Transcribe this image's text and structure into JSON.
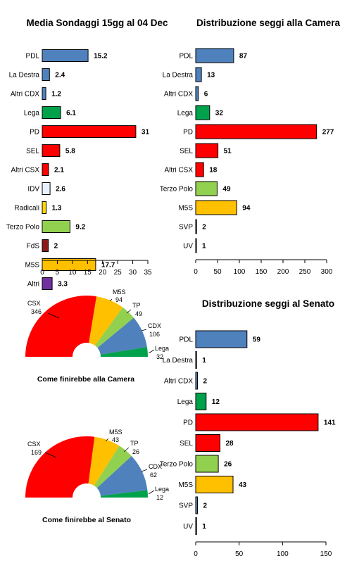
{
  "chart_data": [
    {
      "id": "poll",
      "type": "bar",
      "orientation": "horizontal",
      "title": "Media Sondaggi 15gg al 04 Dec",
      "categories": [
        "PDL",
        "La Destra",
        "Altri CDX",
        "Lega",
        "PD",
        "SEL",
        "Altri CSX",
        "IDV",
        "Radicali",
        "Terzo Polo",
        "FdS",
        "M5S",
        "Altri"
      ],
      "values": [
        15.2,
        2.4,
        1.2,
        6.1,
        31,
        5.8,
        2.1,
        2.6,
        1.3,
        9.2,
        2,
        17.7,
        3.3
      ],
      "value_labels": [
        "15.2",
        "2.4",
        "1.2",
        "6.1",
        "31",
        "5.8",
        "2.1",
        "2.6",
        "1.3",
        "9.2",
        "2",
        "17.7",
        "3.3"
      ],
      "colors": [
        "#4f81bd",
        "#4f81bd",
        "#4f81bd",
        "#00a14b",
        "#ff0000",
        "#ff0000",
        "#ff0000",
        "#e8f1fb",
        "#ffd700",
        "#92d050",
        "#8b1a1a",
        "#ffc000",
        "#7030a0"
      ],
      "xlim": [
        0,
        35
      ],
      "xticks": [
        "0",
        "5",
        "10",
        "15",
        "20",
        "25",
        "30",
        "35"
      ],
      "grid": false
    },
    {
      "id": "camera",
      "type": "bar",
      "orientation": "horizontal",
      "title": "Distribuzione seggi alla Camera",
      "categories": [
        "PDL",
        "La Destra",
        "Altri CDX",
        "Lega",
        "PD",
        "SEL",
        "Altri CSX",
        "Terzo Polo",
        "M5S",
        "SVP",
        "UV"
      ],
      "values": [
        87,
        13,
        6,
        32,
        277,
        51,
        18,
        49,
        94,
        2,
        1
      ],
      "value_labels": [
        "87",
        "13",
        "6",
        "32",
        "277",
        "51",
        "18",
        "49",
        "94",
        "2",
        "1"
      ],
      "colors": [
        "#4f81bd",
        "#4f81bd",
        "#4f81bd",
        "#00a14b",
        "#ff0000",
        "#ff0000",
        "#ff0000",
        "#92d050",
        "#ffc000",
        "#4f81bd",
        "#4f81bd"
      ],
      "xlim": [
        0,
        300
      ],
      "xticks": [
        "0",
        "50",
        "100",
        "150",
        "200",
        "250",
        "300"
      ],
      "grid": false
    },
    {
      "id": "senato",
      "type": "bar",
      "orientation": "horizontal",
      "title": "Distribuzione seggi al Senato",
      "categories": [
        "PDL",
        "La Destra",
        "Altri CDX",
        "Lega",
        "PD",
        "SEL",
        "Terzo Polo",
        "M5S",
        "SVP",
        "UV"
      ],
      "values": [
        59,
        1,
        2,
        12,
        141,
        28,
        26,
        43,
        2,
        1
      ],
      "value_labels": [
        "59",
        "1",
        "2",
        "12",
        "141",
        "28",
        "26",
        "43",
        "2",
        "1"
      ],
      "colors": [
        "#4f81bd",
        "#4f81bd",
        "#4f81bd",
        "#00a14b",
        "#ff0000",
        "#ff0000",
        "#92d050",
        "#ffc000",
        "#4f81bd",
        "#4f81bd"
      ],
      "xlim": [
        0,
        150
      ],
      "xticks": [
        "0",
        "50",
        "100",
        "150"
      ],
      "grid": false
    },
    {
      "id": "pie-camera",
      "type": "pie",
      "subtype": "semicircle",
      "caption": "Come finirebbe alla Camera",
      "slices": [
        {
          "label": "CSX",
          "value": 346,
          "value_label": "346",
          "color": "#ff0000"
        },
        {
          "label": "M5S",
          "value": 94,
          "value_label": "94",
          "color": "#ffc000"
        },
        {
          "label": "TP",
          "value": 49,
          "value_label": "49",
          "color": "#92d050"
        },
        {
          "label": "CDX",
          "value": 106,
          "value_label": "106",
          "color": "#4f81bd"
        },
        {
          "label": "Lega",
          "value": 32,
          "value_label": "32",
          "color": "#00a14b"
        }
      ]
    },
    {
      "id": "pie-senato",
      "type": "pie",
      "subtype": "semicircle",
      "caption": "Come finirebbe al Senato",
      "slices": [
        {
          "label": "CSX",
          "value": 169,
          "value_label": "169",
          "color": "#ff0000"
        },
        {
          "label": "M5S",
          "value": 43,
          "value_label": "43",
          "color": "#ffc000"
        },
        {
          "label": "TP",
          "value": 26,
          "value_label": "26",
          "color": "#92d050"
        },
        {
          "label": "CDX",
          "value": 62,
          "value_label": "62",
          "color": "#4f81bd"
        },
        {
          "label": "Lega",
          "value": 12,
          "value_label": "12",
          "color": "#00a14b"
        }
      ]
    }
  ]
}
